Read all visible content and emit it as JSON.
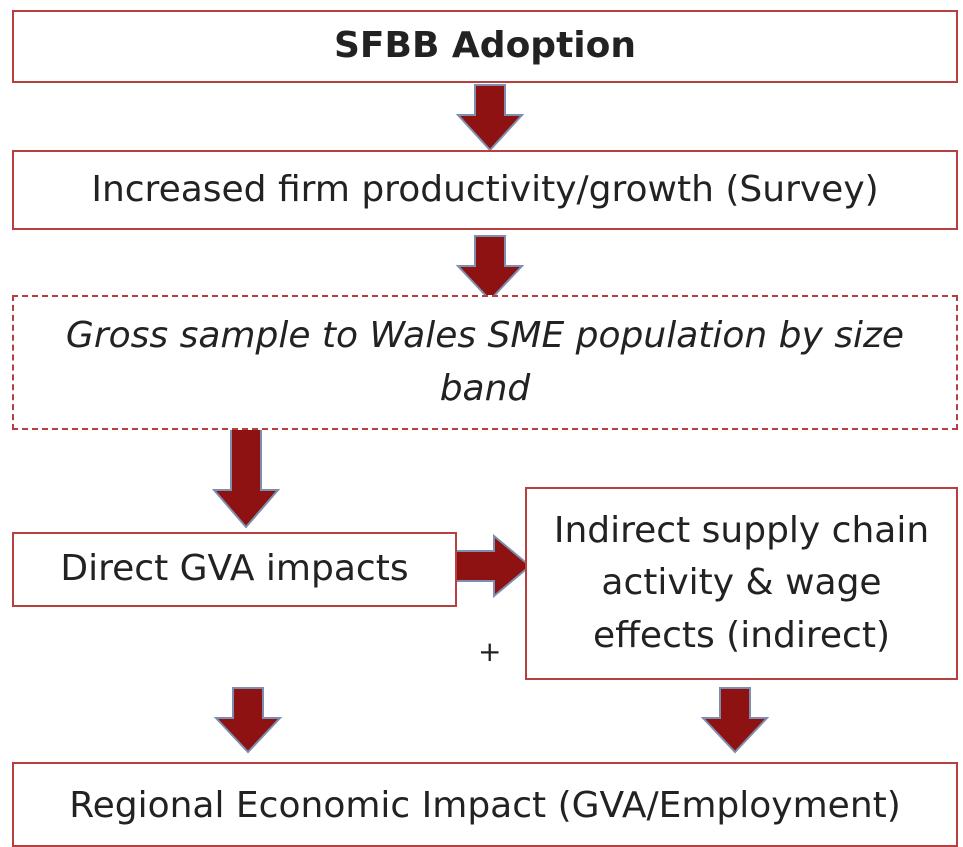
{
  "nodes": [
    {
      "label": "SFBB Adoption"
    },
    {
      "label": "Increased firm productivity/growth (Survey)"
    },
    {
      "label": "Gross sample to Wales SME population by size band"
    },
    {
      "label": "Direct GVA impacts"
    },
    {
      "label": "Indirect supply chain activity & wage effects (indirect)"
    },
    {
      "label": "Regional Economic Impact (GVA/Employment)"
    }
  ],
  "connector": "+"
}
